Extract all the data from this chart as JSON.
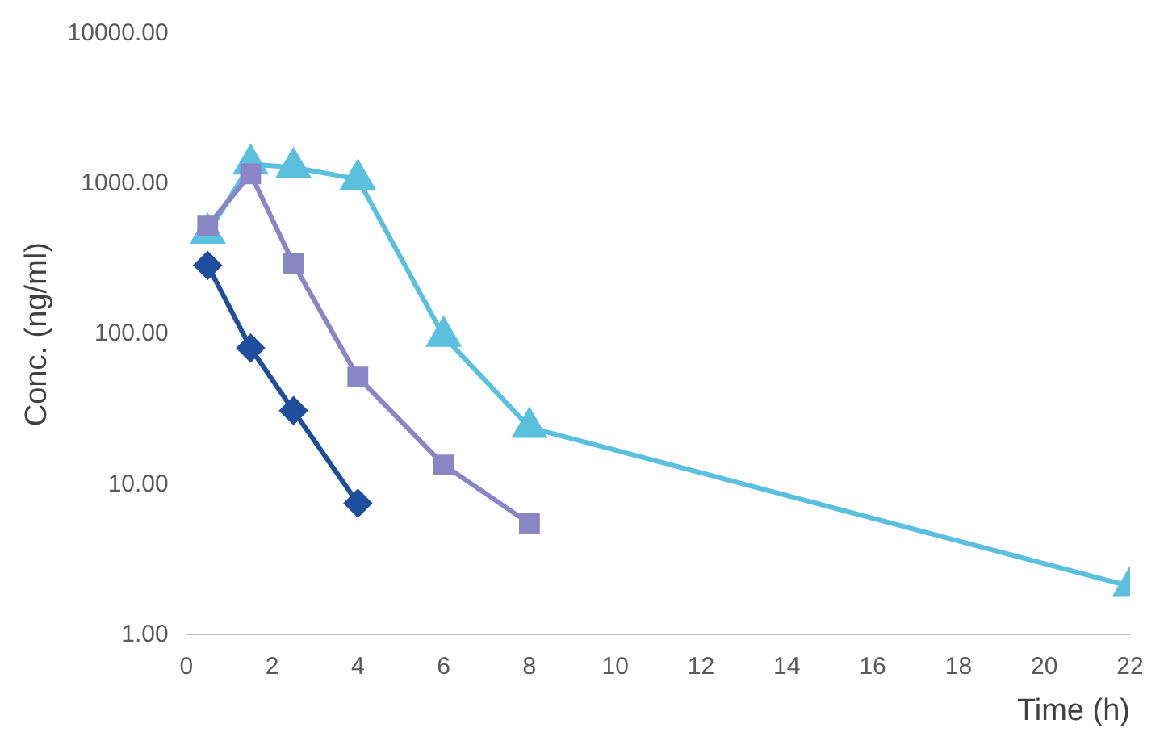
{
  "chart_data": {
    "type": "line",
    "xlabel": "Time (h)",
    "ylabel": "Conc. (ng/ml)",
    "log": "y",
    "xlim": [
      0,
      22
    ],
    "xticks": [
      0,
      2,
      4,
      6,
      8,
      10,
      12,
      14,
      16,
      18,
      20,
      22
    ],
    "ylim": [
      1,
      10000
    ],
    "yticks": [
      {
        "value": 1,
        "label": "1.00"
      },
      {
        "value": 10,
        "label": "10.00"
      },
      {
        "value": 100,
        "label": "100.00"
      },
      {
        "value": 1000,
        "label": "1000.00"
      },
      {
        "value": 10000,
        "label": "10000.00"
      }
    ],
    "grid": false,
    "legend": false,
    "series": [
      {
        "color": "#1f4e9c",
        "marker": "diamond",
        "x": [
          0.5,
          1.5,
          2.5,
          4
        ],
        "values": [
          288,
          81,
          31,
          7.5
        ]
      },
      {
        "color": "#8a86c6",
        "marker": "square",
        "x": [
          0.5,
          1.5,
          2.5,
          4,
          6,
          8
        ],
        "values": [
          525,
          1170,
          295,
          52,
          13.5,
          5.5
        ]
      },
      {
        "color": "#5bc0de",
        "marker": "triangle",
        "x": [
          0.5,
          1.5,
          2.5,
          4,
          6,
          8,
          22
        ],
        "values": [
          470,
          1360,
          1290,
          1080,
          97,
          24,
          2.1
        ]
      }
    ]
  }
}
